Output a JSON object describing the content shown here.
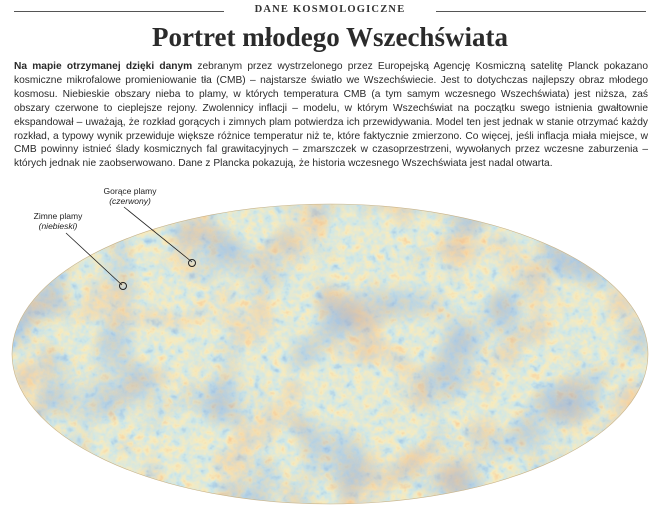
{
  "section_label": "DANE KOSMOLOGICZNE",
  "title": "Portret młodego Wszechświata",
  "lead": "Na mapie otrzymanej dzięki danym",
  "body_text": " zebranym przez wystrzelonego przez Europejską Agencję Kosmiczną satelitę Planck pokazano kosmiczne mikrofalowe promieniowanie tła (CMB) – najstarsze światło we Wszechświecie. Jest to dotychczas najlepszy obraz młodego kosmosu. Niebieskie obszary nieba to plamy, w których temperatura CMB (a tym samym wczesnego Wszechświata) jest niższa, zaś obszary czerwone to cieplejsze rejony. Zwolennicy inflacji – modelu, w którym Wszechświat na początku swego istnienia gwałtownie ekspandował – uważają, że rozkład gorących i zimnych plam potwierdza ich przewidywania. Model ten jest jednak w stanie otrzymać każdy rozkład, a typowy wynik przewiduje większe różnice temperatur niż te, które faktycznie zmierzono. Co więcej, jeśli inflacja miała miejsce, w CMB powinny istnieć ślady kosmicznych fal grawitacyjnych – zmarszczek w czasoprzestrzeni, wywołanych przez wczesne zaburzenia – których jednak nie zaobserwowano. Dane z Plancka pokazują, że historia wczesnego Wszechświata jest nadal otwarta.",
  "annotations": {
    "hot": {
      "label": "Gorące plamy",
      "sub": "(czerwony)"
    },
    "cold": {
      "label": "Zimne plamy",
      "sub": "(niebieski)"
    }
  },
  "colors": {
    "cold": "#3a64b8",
    "mid": "#8fc6c9",
    "warm": "#f2ba5e",
    "hot": "#e0622f"
  }
}
